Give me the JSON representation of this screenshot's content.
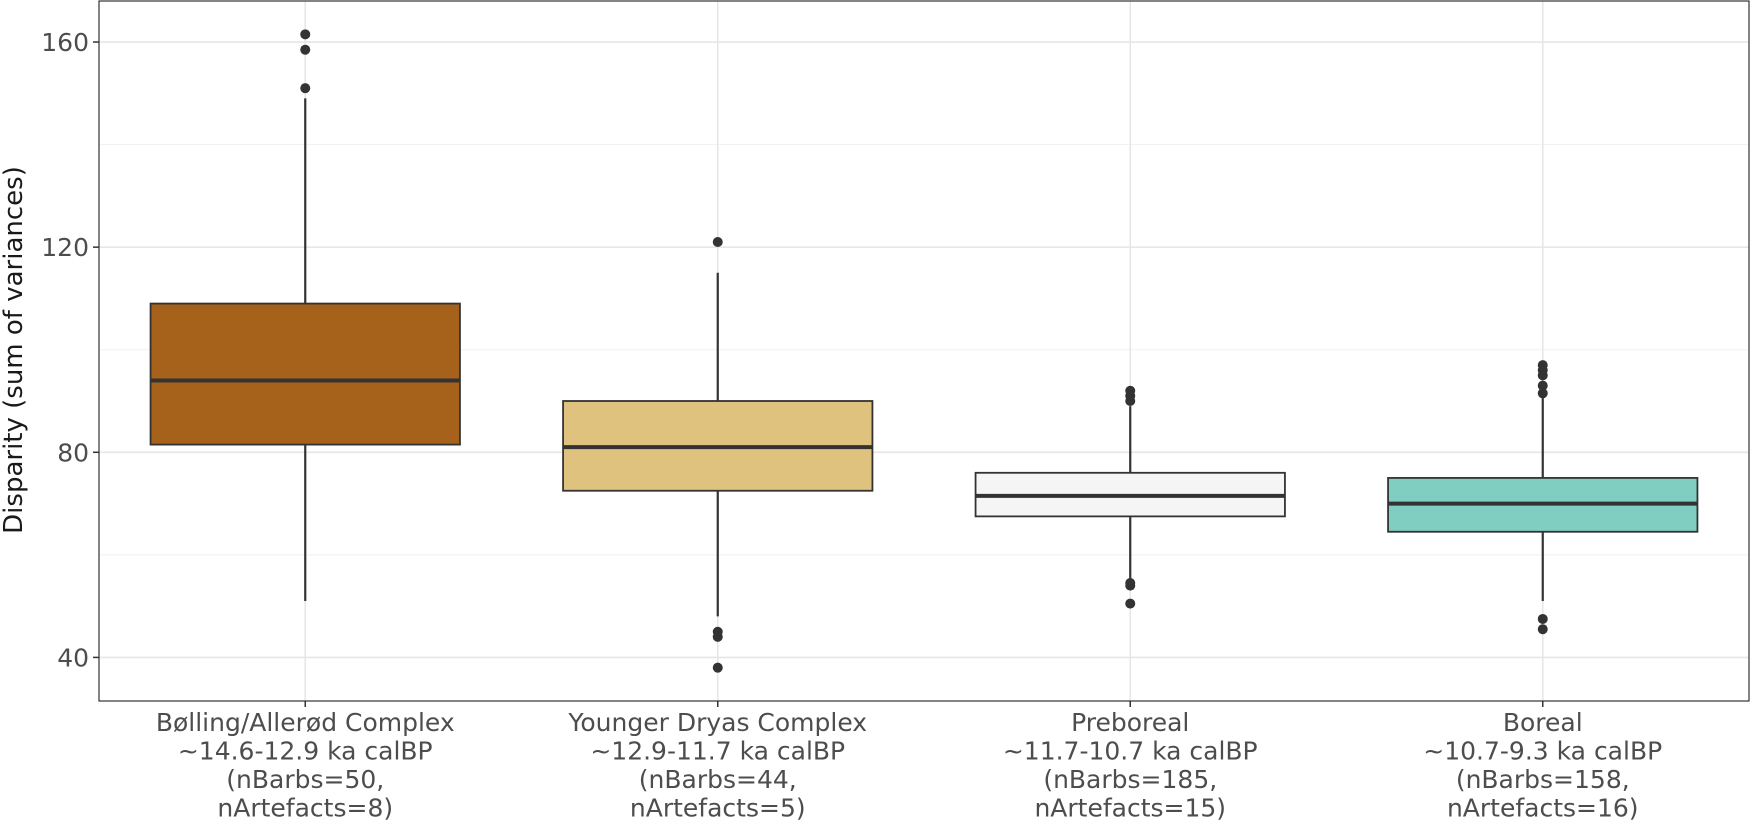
{
  "chart_data": {
    "type": "boxplot",
    "ylabel": "Disparity (sum of variances)",
    "yticks": [
      40,
      80,
      120,
      160
    ],
    "ylim": [
      31.5,
      168
    ],
    "grid": true,
    "categories": [
      {
        "lines": [
          "Bølling/Allerød Complex",
          "~14.6-12.9 ka calBP",
          "(nBarbs=50,",
          "nArtefacts=8)"
        ],
        "color": "#a6611a",
        "whisker_low": 51,
        "q1": 81.5,
        "median": 94,
        "q3": 109,
        "whisker_high": 149,
        "outliers": [
          151,
          158.5,
          161.5
        ]
      },
      {
        "lines": [
          "Younger Dryas Complex",
          "~12.9-11.7 ka calBP",
          "(nBarbs=44,",
          "nArtefacts=5)"
        ],
        "color": "#dfc27d",
        "whisker_low": 48,
        "q1": 72.5,
        "median": 81,
        "q3": 90,
        "whisker_high": 115,
        "outliers": [
          121,
          45,
          44,
          38
        ]
      },
      {
        "lines": [
          "Preboreal",
          "~11.7-10.7 ka calBP",
          "(nBarbs=185,",
          "nArtefacts=15)"
        ],
        "color": "#f5f5f5",
        "whisker_low": 55,
        "q1": 67.5,
        "median": 71.5,
        "q3": 76,
        "whisker_high": 89,
        "outliers": [
          92,
          91,
          90,
          54.5,
          54,
          50.5
        ]
      },
      {
        "lines": [
          "Boreal",
          "~10.7-9.3 ka calBP",
          "(nBarbs=158,",
          "nArtefacts=16)"
        ],
        "color": "#80cdc1",
        "whisker_low": 51,
        "q1": 64.5,
        "median": 70,
        "q3": 75,
        "whisker_high": 91,
        "outliers": [
          97,
          96,
          95,
          93,
          91.5,
          47.5,
          45.5
        ]
      }
    ]
  }
}
